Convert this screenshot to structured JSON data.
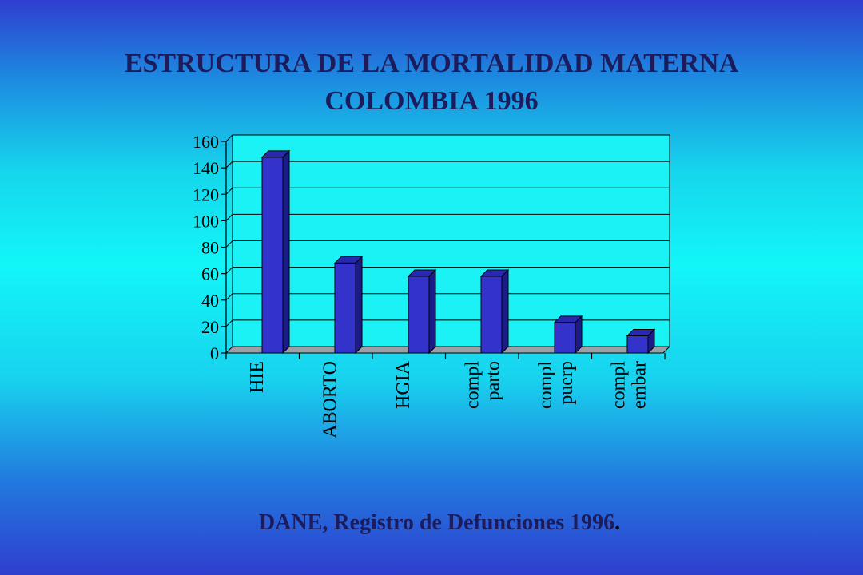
{
  "title_lines": [
    "ESTRUCTURA DE LA MORTALIDAD MATERNA",
    "COLOMBIA 1996"
  ],
  "source": "DANE, Registro de Defunciones 1996",
  "source_end": ".",
  "colors": {
    "bar_front": "#3333cc",
    "bar_side": "#1c1c88",
    "bar_top": "#2828b0",
    "text": "#1c1c5c",
    "plot_background": "#1af2f6"
  },
  "chart_data": {
    "type": "bar",
    "title": "ESTRUCTURA DE LA MORTALIDAD MATERNA COLOMBIA 1996",
    "categories": [
      [
        "HIE"
      ],
      [
        "ABORTO"
      ],
      [
        "HGIA"
      ],
      [
        "compl",
        "parto"
      ],
      [
        "compl",
        "puerp"
      ],
      [
        "compl",
        "embar"
      ]
    ],
    "values": [
      148,
      68,
      58,
      58,
      23,
      13
    ],
    "ylim": [
      0,
      160
    ],
    "yticks": [
      0,
      20,
      40,
      60,
      80,
      100,
      120,
      140,
      160
    ],
    "grid": true,
    "style": "3d",
    "xlabel": "",
    "ylabel": ""
  }
}
